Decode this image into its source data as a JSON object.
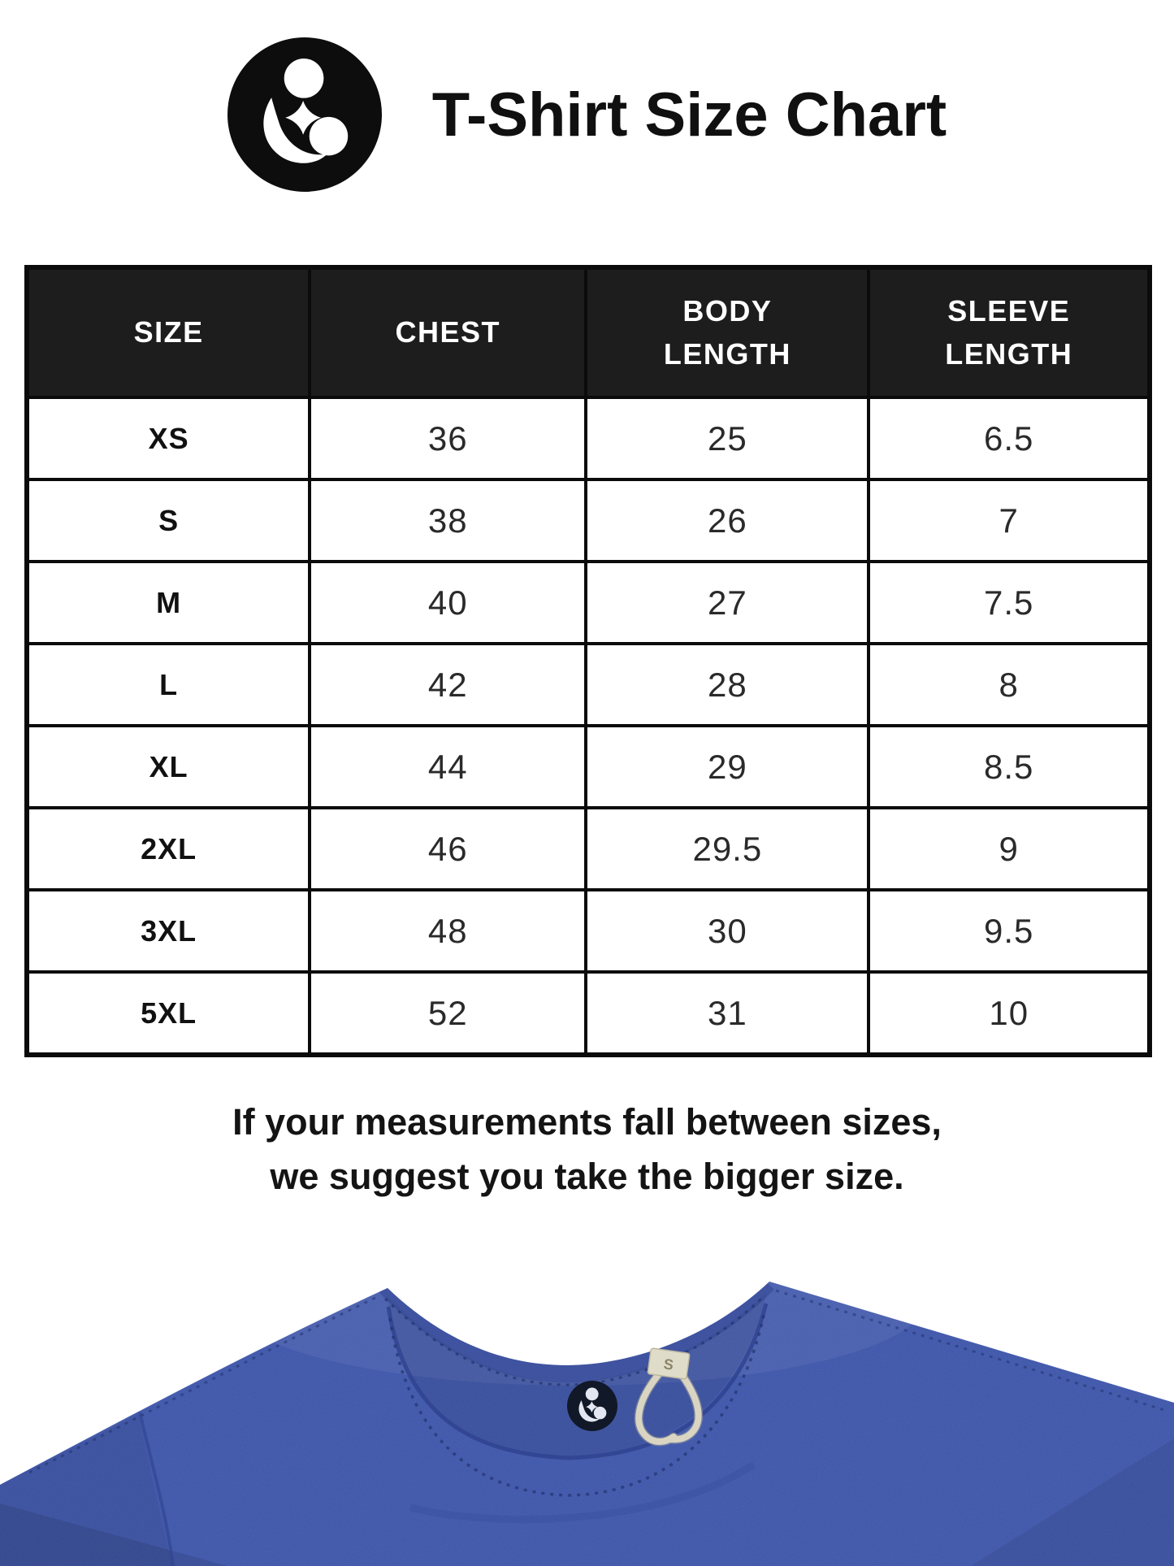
{
  "brand": {
    "logo_icon": "parent-child-logo",
    "title": "T-Shirt Size Chart"
  },
  "table": {
    "columns": [
      "SIZE",
      "CHEST",
      "BODY LENGTH",
      "SLEEVE LENGTH"
    ],
    "rows": [
      [
        "XS",
        "36",
        "25",
        "6.5"
      ],
      [
        "S",
        "38",
        "26",
        "7"
      ],
      [
        "M",
        "40",
        "27",
        "7.5"
      ],
      [
        "L",
        "42",
        "28",
        "8"
      ],
      [
        "XL",
        "44",
        "29",
        "8.5"
      ],
      [
        "2XL",
        "46",
        "29.5",
        "9"
      ],
      [
        "3XL",
        "48",
        "30",
        "9.5"
      ],
      [
        "5XL",
        "52",
        "31",
        "10"
      ]
    ]
  },
  "note": {
    "line1": "If your measurements fall between sizes,",
    "line2": "we suggest you take the bigger size."
  },
  "photo": {
    "subject": "royal blue t-shirt collar with brand neck tag and hanger loop",
    "loop_tag_text": "S"
  },
  "colors": {
    "header_bg": "#1d1d1d",
    "border": "#0b0b0b",
    "text": "#141414",
    "logo_black": "#0d0d0d",
    "shirt_blue": "#3c54a9",
    "shirt_shadow": "#2c3f8c",
    "tag_navy": "#111827",
    "loop_cream": "#d9d5c2"
  }
}
